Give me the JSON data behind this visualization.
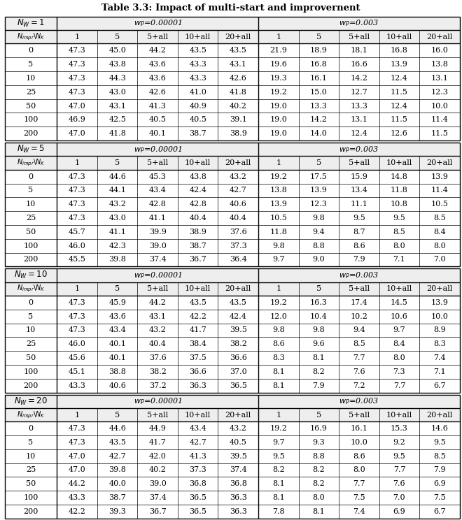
{
  "title": "Table 3.3: Impact of multi-start and improvernent",
  "sections": [
    {
      "NW_num": "1",
      "wp1": "w_P=0.00001",
      "wp2": "w_P=0.003",
      "rows": [
        [
          0,
          47.3,
          45.0,
          44.2,
          43.5,
          43.5,
          21.9,
          18.9,
          18.1,
          16.8,
          16.0
        ],
        [
          5,
          47.3,
          43.8,
          43.6,
          43.3,
          43.1,
          19.6,
          16.8,
          16.6,
          13.9,
          13.8
        ],
        [
          10,
          47.3,
          44.3,
          43.6,
          43.3,
          42.6,
          19.3,
          16.1,
          14.2,
          12.4,
          13.1
        ],
        [
          25,
          47.3,
          43.0,
          42.6,
          41.0,
          41.8,
          19.2,
          15.0,
          12.7,
          11.5,
          12.3
        ],
        [
          50,
          47.0,
          43.1,
          41.3,
          40.9,
          40.2,
          19.0,
          13.3,
          13.3,
          12.4,
          10.0
        ],
        [
          100,
          46.9,
          42.5,
          40.5,
          40.5,
          39.1,
          19.0,
          14.2,
          13.1,
          11.5,
          11.4
        ],
        [
          200,
          47.0,
          41.8,
          40.1,
          38.7,
          38.9,
          19.0,
          14.0,
          12.4,
          12.6,
          11.5
        ]
      ]
    },
    {
      "NW_num": "5",
      "wp1": "w_P=0.00001",
      "wp2": "w_P=0.003",
      "rows": [
        [
          0,
          47.3,
          44.6,
          45.3,
          43.8,
          43.2,
          19.2,
          17.5,
          15.9,
          14.8,
          13.9
        ],
        [
          5,
          47.3,
          44.1,
          43.4,
          42.4,
          42.7,
          13.8,
          13.9,
          13.4,
          11.8,
          11.4
        ],
        [
          10,
          47.3,
          43.2,
          42.8,
          42.8,
          40.6,
          13.9,
          12.3,
          11.1,
          10.8,
          10.5
        ],
        [
          25,
          47.3,
          43.0,
          41.1,
          40.4,
          40.4,
          10.5,
          9.8,
          9.5,
          9.5,
          8.5
        ],
        [
          50,
          45.7,
          41.1,
          39.9,
          38.9,
          37.6,
          11.8,
          9.4,
          8.7,
          8.5,
          8.4
        ],
        [
          100,
          46.0,
          42.3,
          39.0,
          38.7,
          37.3,
          9.8,
          8.8,
          8.6,
          8.0,
          8.0
        ],
        [
          200,
          45.5,
          39.8,
          37.4,
          36.7,
          36.4,
          9.7,
          9.0,
          7.9,
          7.1,
          7.0
        ]
      ]
    },
    {
      "NW_num": "10",
      "wp1": "w_P=0.00001",
      "wp2": "w_P=0.003",
      "rows": [
        [
          0,
          47.3,
          45.9,
          44.2,
          43.5,
          43.5,
          19.2,
          16.3,
          17.4,
          14.5,
          13.9
        ],
        [
          5,
          47.3,
          43.6,
          43.1,
          42.2,
          42.4,
          12.0,
          10.4,
          10.2,
          10.6,
          10.0
        ],
        [
          10,
          47.3,
          43.4,
          43.2,
          41.7,
          39.5,
          9.8,
          9.8,
          9.4,
          9.7,
          8.9
        ],
        [
          25,
          46.0,
          40.1,
          40.4,
          38.4,
          38.2,
          8.6,
          9.6,
          8.5,
          8.4,
          8.3
        ],
        [
          50,
          45.6,
          40.1,
          37.6,
          37.5,
          36.6,
          8.3,
          8.1,
          7.7,
          8.0,
          7.4
        ],
        [
          100,
          45.1,
          38.8,
          38.2,
          36.6,
          37.0,
          8.1,
          8.2,
          7.6,
          7.3,
          7.1
        ],
        [
          200,
          43.3,
          40.6,
          37.2,
          36.3,
          36.5,
          8.1,
          7.9,
          7.2,
          7.7,
          6.7
        ]
      ]
    },
    {
      "NW_num": "20",
      "wp1": "w_P=0.00001",
      "wp2": "w_P=0.003",
      "rows": [
        [
          0,
          47.3,
          44.6,
          44.9,
          43.4,
          43.2,
          19.2,
          16.9,
          16.1,
          15.3,
          14.6
        ],
        [
          5,
          47.3,
          43.5,
          41.7,
          42.7,
          40.5,
          9.7,
          9.3,
          10.0,
          9.2,
          9.5
        ],
        [
          10,
          47.0,
          42.7,
          42.0,
          41.3,
          39.5,
          9.5,
          8.8,
          8.6,
          9.5,
          8.5
        ],
        [
          25,
          47.0,
          39.8,
          40.2,
          37.3,
          37.4,
          8.2,
          8.2,
          8.0,
          7.7,
          7.9
        ],
        [
          50,
          44.2,
          40.0,
          39.0,
          36.8,
          36.8,
          8.1,
          8.2,
          7.7,
          7.6,
          6.9
        ],
        [
          100,
          43.3,
          38.7,
          37.4,
          36.5,
          36.3,
          8.1,
          8.0,
          7.5,
          7.0,
          7.5
        ],
        [
          200,
          42.2,
          39.3,
          36.7,
          36.5,
          36.3,
          7.8,
          8.1,
          7.4,
          6.9,
          6.7
        ]
      ]
    }
  ],
  "col_headers": [
    "1",
    "5",
    "5+all",
    "10+all",
    "20+all"
  ],
  "bg_color": "#ffffff",
  "line_color": "#000000",
  "font_size": 8.0,
  "title_font_size": 9.5
}
